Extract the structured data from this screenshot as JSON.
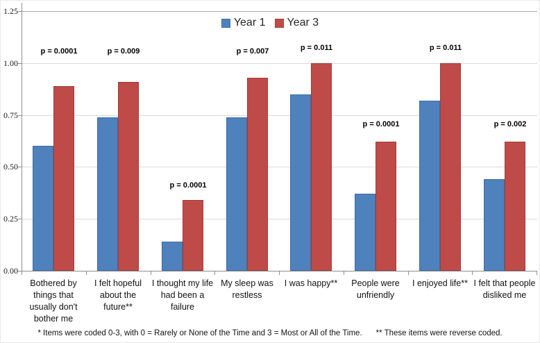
{
  "figure": {
    "legend": [
      {
        "label": "Year 1",
        "color": "#4f81bd"
      },
      {
        "label": "Year 3",
        "color": "#be4b48"
      }
    ],
    "footnote": {
      "part1": "* Items were coded 0-3, with 0 = Rarely or None of the Time and 3 = Most or All of the Time.",
      "part2": "** These items were reverse coded."
    }
  },
  "chart_data": {
    "type": "bar",
    "title": "",
    "xlabel": "",
    "ylabel": "",
    "ylim": [
      0,
      1.25
    ],
    "y_tick_values": [
      0,
      0.25,
      0.5,
      0.75,
      1.0,
      1.25
    ],
    "y_tick_labels": [
      "0.00",
      "0.25",
      "0.50",
      "0.75",
      "1.00",
      "1.25"
    ],
    "grid": true,
    "legend_position": "top-center",
    "categories": [
      "Bothered by things that usually don't bother me",
      "I felt hopeful about the future**",
      "I thought my life had been a failure",
      "My sleep was restless",
      "I was happy**",
      "People were unfriendly",
      "I enjoyed life**",
      "I felt that people disliked me"
    ],
    "category_label_lines": [
      [
        "Bothered by",
        "things that",
        "usually don't",
        "bother me"
      ],
      [
        "I felt hopeful",
        "about the",
        "future**"
      ],
      [
        "I thought my life",
        "had been a",
        "failure"
      ],
      [
        "My sleep was",
        "restless"
      ],
      [
        "I was happy**"
      ],
      [
        "People were",
        "unfriendly"
      ],
      [
        "I enjoyed life**"
      ],
      [
        "I felt that people",
        "disliked me"
      ]
    ],
    "series": [
      {
        "name": "Year 1",
        "color": "#4f81bd",
        "values": [
          0.6,
          0.74,
          0.14,
          0.74,
          0.85,
          0.37,
          0.82,
          0.44
        ]
      },
      {
        "name": "Year 3",
        "color": "#be4b48",
        "values": [
          0.89,
          0.91,
          0.34,
          0.93,
          1.0,
          0.62,
          1.0,
          0.62
        ]
      }
    ],
    "p_values": [
      "p = 0.0001",
      "p = 0.009",
      "p = 0.0001",
      "p = 0.007",
      "p = 0.011",
      "p = 0.0001",
      "p = 0.011",
      "p = 0.002"
    ]
  }
}
